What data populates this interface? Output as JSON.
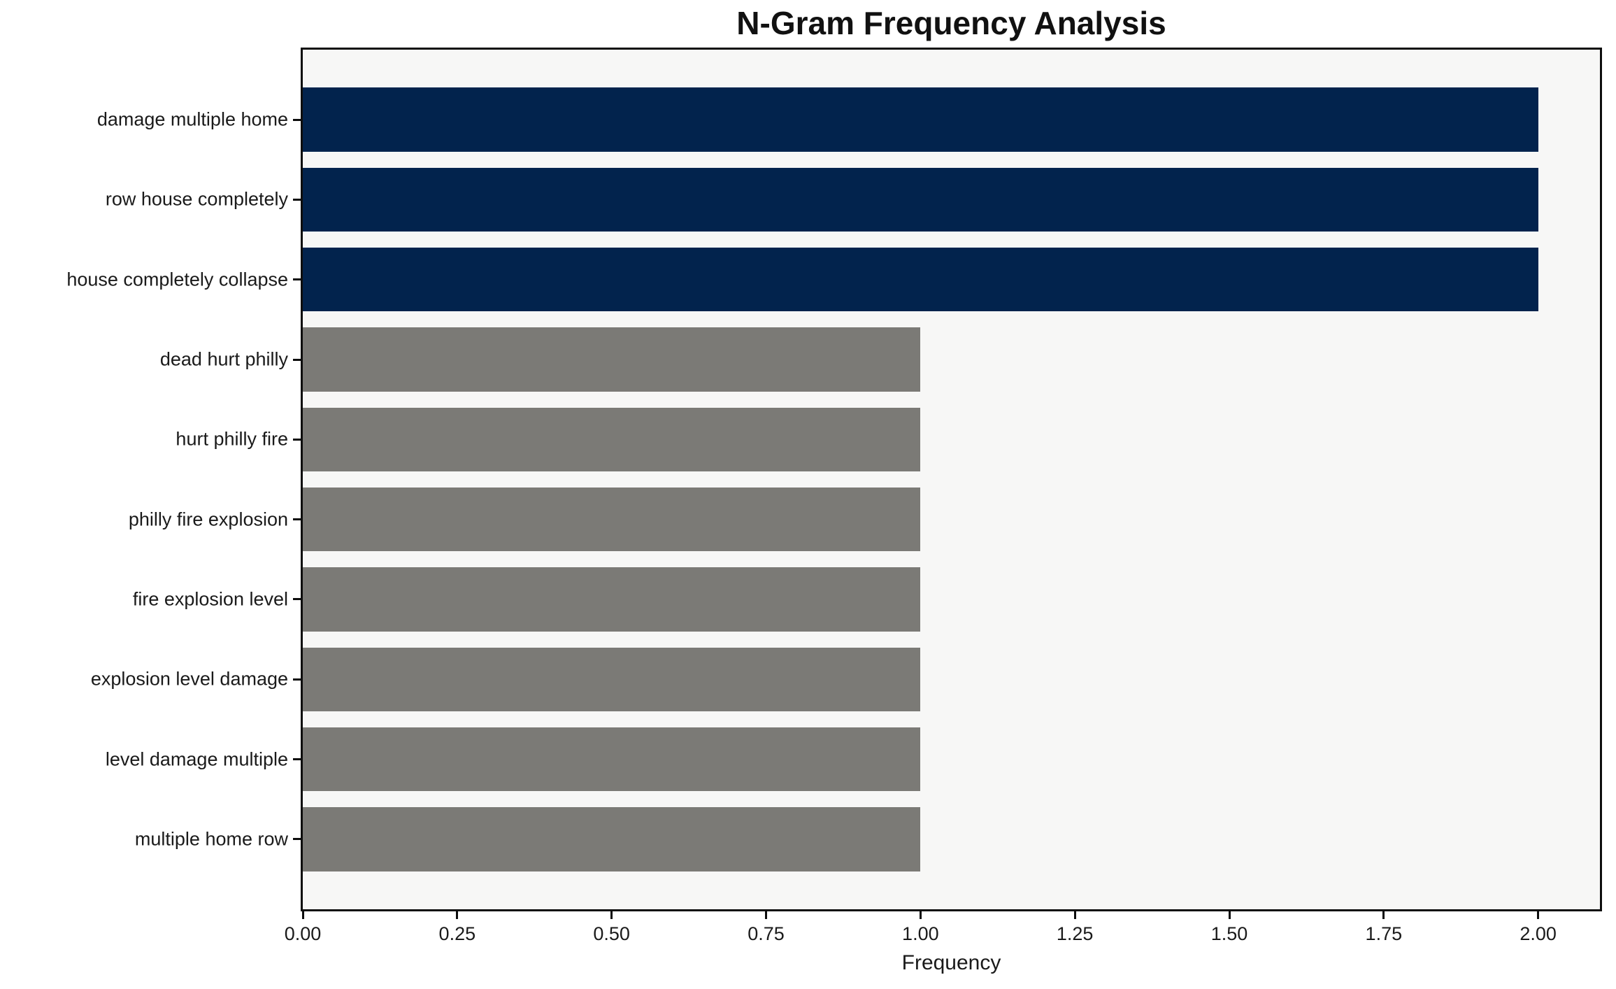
{
  "chart_data": {
    "type": "bar",
    "orientation": "horizontal",
    "title": "N-Gram Frequency Analysis",
    "xlabel": "Frequency",
    "ylabel": "",
    "categories": [
      "damage multiple home",
      "row house completely",
      "house completely collapse",
      "dead hurt philly",
      "hurt philly fire",
      "philly fire explosion",
      "fire explosion level",
      "explosion level damage",
      "level damage multiple",
      "multiple home row"
    ],
    "values": [
      2,
      2,
      2,
      1,
      1,
      1,
      1,
      1,
      1,
      1
    ],
    "bar_colors": [
      "#02234d",
      "#02234d",
      "#02234d",
      "#7b7a76",
      "#7b7a76",
      "#7b7a76",
      "#7b7a76",
      "#7b7a76",
      "#7b7a76",
      "#7b7a76"
    ],
    "colors": {
      "highlight": "#02234d",
      "base": "#7b7a76",
      "plot_background": "#f7f7f6",
      "figure_background": "#ffffff",
      "frame": "#0d0d0d"
    },
    "xlim": [
      0,
      2.1
    ],
    "xticks": [
      {
        "value": 0.0,
        "label": "0.00"
      },
      {
        "value": 0.25,
        "label": "0.25"
      },
      {
        "value": 0.5,
        "label": "0.50"
      },
      {
        "value": 0.75,
        "label": "0.75"
      },
      {
        "value": 1.0,
        "label": "1.00"
      },
      {
        "value": 1.25,
        "label": "1.25"
      },
      {
        "value": 1.5,
        "label": "1.50"
      },
      {
        "value": 1.75,
        "label": "1.75"
      },
      {
        "value": 2.0,
        "label": "2.00"
      }
    ],
    "grid": false,
    "legend": null
  }
}
